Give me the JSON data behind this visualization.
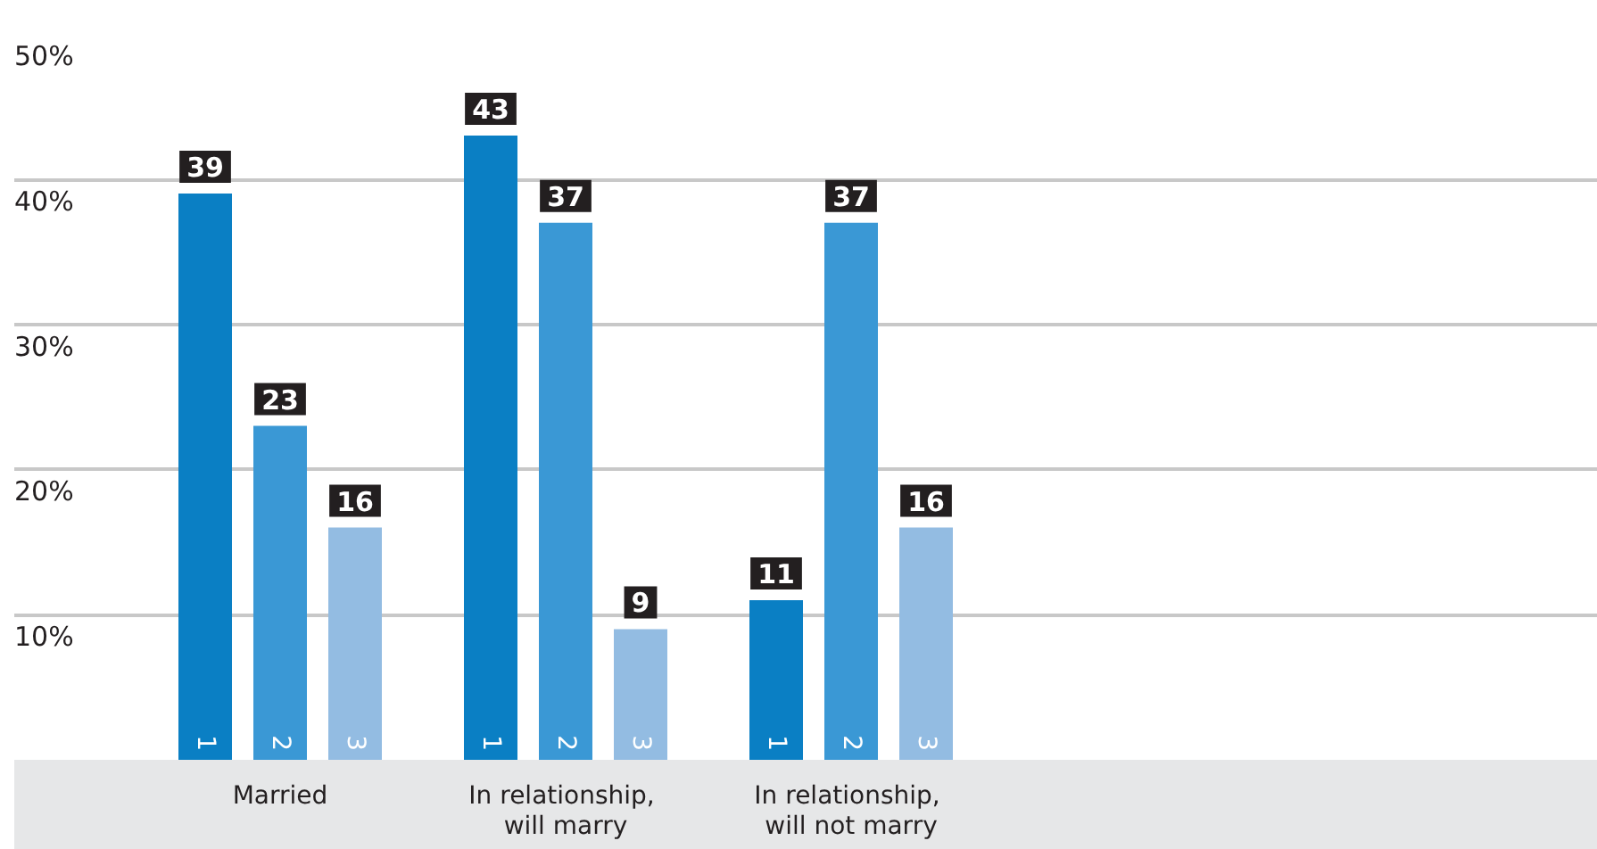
{
  "chart_data": {
    "type": "bar",
    "categories": [
      "Married",
      "In relationship, will marry",
      "In relationship, will not marry"
    ],
    "series": [
      {
        "name": "1",
        "color": "#0a7fc4",
        "values": [
          39,
          43,
          11
        ]
      },
      {
        "name": "2",
        "color": "#3a98d5",
        "values": [
          23,
          37,
          37
        ]
      },
      {
        "name": "3",
        "color": "#93bce2",
        "values": [
          16,
          9,
          16
        ]
      }
    ],
    "ylim": [
      0,
      50
    ],
    "yticks": [
      {
        "value": 10,
        "label": "10%"
      },
      {
        "value": 20,
        "label": "20%"
      },
      {
        "value": 30,
        "label": "30%"
      },
      {
        "value": 40,
        "label": "40%"
      },
      {
        "value": 50,
        "label": "50%"
      }
    ],
    "grid": "y",
    "legend": false,
    "data_labels": true
  }
}
